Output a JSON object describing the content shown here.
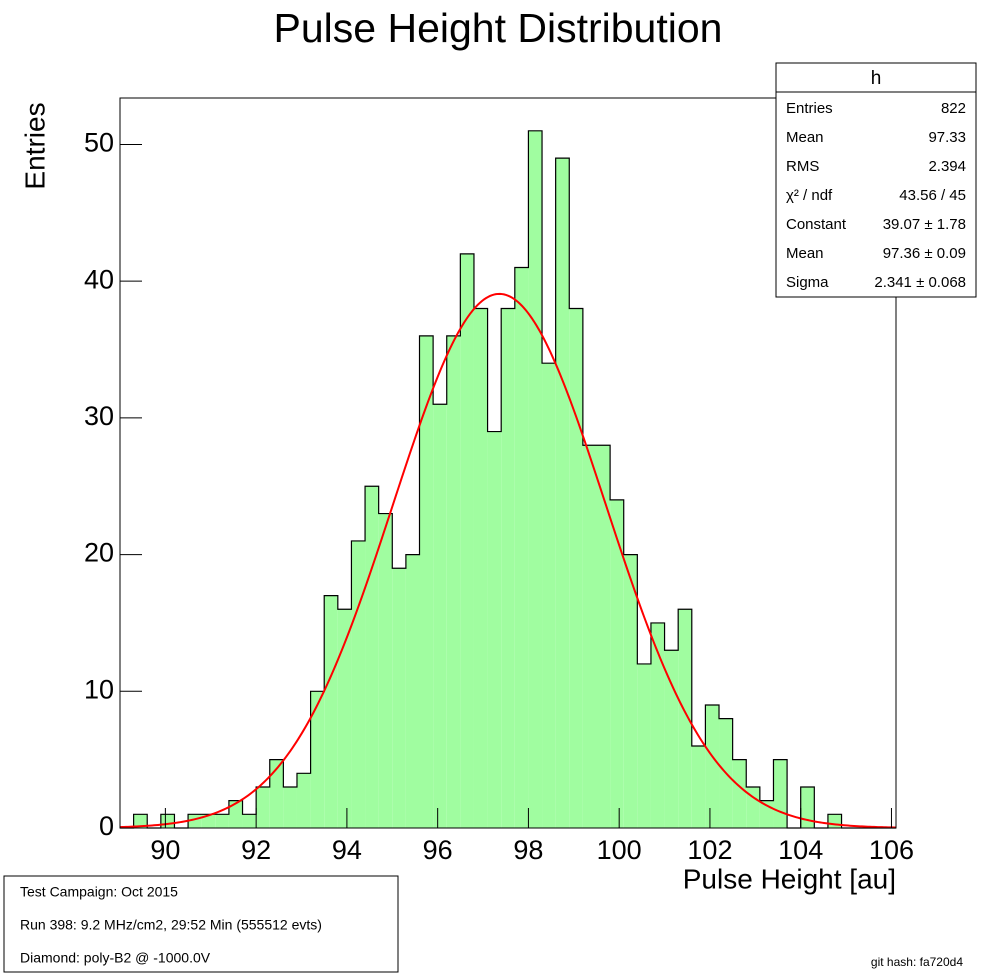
{
  "chart_data": {
    "type": "histogram",
    "title": "Pulse Height Distribution",
    "x_label": "Pulse Height [au]",
    "y_label": "Entries",
    "color": "#a0fda0",
    "edge_color": "#000000",
    "bins": [
      89.0,
      89.3,
      89.6,
      89.9,
      90.2,
      90.5,
      90.8,
      91.1,
      91.4,
      91.7,
      92.0,
      92.3,
      92.6,
      92.9,
      93.2,
      93.5,
      93.8,
      94.1,
      94.4,
      94.7,
      95.0,
      95.3,
      95.6,
      95.9,
      96.2,
      96.5,
      96.8,
      97.1,
      97.4,
      97.7,
      98.0,
      98.3,
      98.6,
      98.9,
      99.2,
      99.5,
      99.8,
      100.1,
      100.4,
      100.7,
      101.0,
      101.3,
      101.6,
      101.9,
      102.2,
      102.5,
      102.8,
      103.1,
      103.4,
      103.7,
      104.0,
      104.3,
      104.6,
      104.9,
      105.2,
      105.5,
      105.8,
      106.1
    ],
    "values": [
      0,
      1,
      0,
      1,
      0,
      1,
      1,
      1,
      2,
      1,
      3,
      5,
      3,
      4,
      10,
      17,
      16,
      21,
      25,
      23,
      19,
      20,
      36,
      31,
      36,
      42,
      38,
      29,
      38,
      41,
      51,
      34,
      49,
      38,
      28,
      28,
      24,
      20,
      12,
      15,
      13,
      16,
      6,
      9,
      8,
      5,
      3,
      2,
      5,
      0,
      3,
      0,
      1,
      0,
      0,
      0,
      0
    ],
    "xlim": [
      89.0,
      106.1
    ],
    "ylim": [
      0,
      53.4
    ],
    "xticks": [
      90,
      92,
      94,
      96,
      98,
      100,
      102,
      104,
      106
    ],
    "yticks": [
      0,
      10,
      20,
      30,
      40,
      50
    ],
    "fit": {
      "constant": 39.07,
      "mean": 97.36,
      "sigma": 2.341,
      "color": "#ff0000"
    },
    "stats": {
      "title": "h",
      "rows": [
        {
          "label": "Entries",
          "value": "822"
        },
        {
          "label": "Mean",
          "value": "97.33"
        },
        {
          "label": "RMS",
          "value": "2.394"
        },
        {
          "label": "χ² / ndf",
          "value": "43.56 / 45"
        },
        {
          "label": "Constant",
          "value": "39.07 ± 1.78"
        },
        {
          "label": "Mean",
          "value": "97.36 ± 0.09"
        },
        {
          "label": "Sigma",
          "value": "2.341 ± 0.068"
        }
      ]
    },
    "info": [
      "Test Campaign: Oct 2015",
      "Run 398: 9.2 MHz/cm2, 29:52 Min (555512 evts)",
      "Diamond: poly-B2 @ -1000.0V"
    ],
    "footer": "git hash: fa720d4"
  }
}
